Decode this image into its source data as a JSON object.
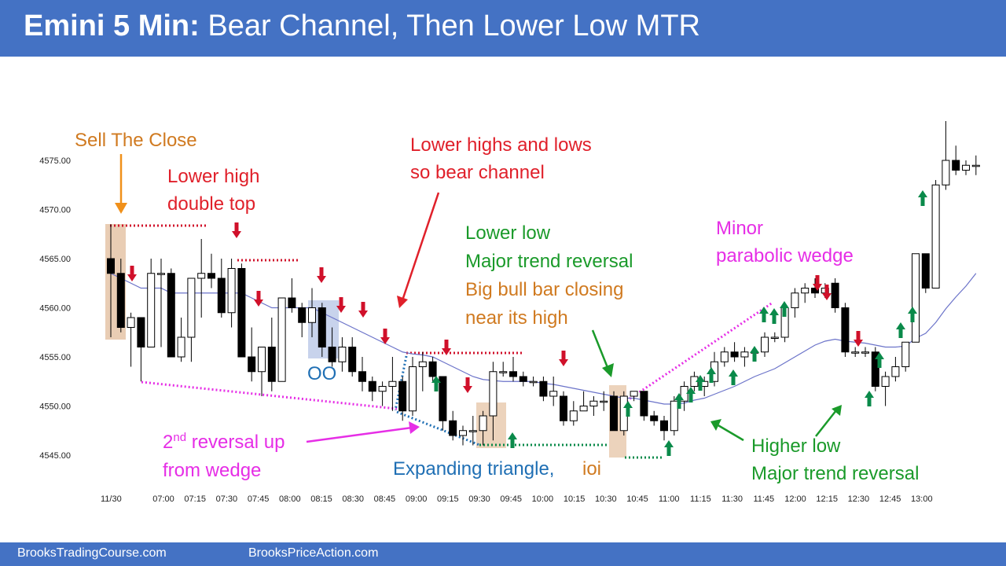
{
  "header": {
    "title_bold": "Emini 5 Min:",
    "title_rest": "Bear Channel, Then Lower Low MTR"
  },
  "footer": {
    "left": "BrooksTradingCourse.com",
    "right": "BrooksPriceAction.com"
  },
  "colors": {
    "header_bg": "#4472c4",
    "bull": "#ffffff",
    "bear": "#000000",
    "ema": "#6b73c9",
    "up_arrow": "#0a8a4a",
    "down_arrow": "#d0102a",
    "magenta": "#e62ee6",
    "red_label": "#e0202a",
    "green_label": "#1a9a2a",
    "orange_label": "#d07a20",
    "blue_label": "#1f6fb4"
  },
  "chart_data": {
    "type": "candlestick",
    "y_ticks": [
      "4575.00",
      "4570.00",
      "4565.00",
      "4560.00",
      "4555.00",
      "4550.00",
      "4545.00"
    ],
    "ylim": [
      4543.5,
      4580
    ],
    "x_ticks": [
      "11/30",
      "07:00",
      "07:15",
      "07:30",
      "07:45",
      "08:00",
      "08:15",
      "08:30",
      "08:45",
      "09:00",
      "09:15",
      "09:30",
      "09:45",
      "10:00",
      "10:15",
      "10:30",
      "10:45",
      "11:00",
      "11:15",
      "11:30",
      "11:45",
      "12:00",
      "12:15",
      "12:30",
      "12:45",
      "13:00"
    ],
    "candles": [
      {
        "o": 4565.0,
        "h": 4568.5,
        "l": 4557.0,
        "c": 4563.5
      },
      {
        "o": 4563.5,
        "h": 4565.0,
        "l": 4557.5,
        "c": 4558.0
      },
      {
        "o": 4558.0,
        "h": 4559.5,
        "l": 4554.0,
        "c": 4559.0
      },
      {
        "o": 4559.0,
        "h": 4559.0,
        "l": 4552.5,
        "c": 4556.0
      },
      {
        "o": 4556.0,
        "h": 4565.0,
        "l": 4556.0,
        "c": 4563.5
      },
      {
        "o": 4563.5,
        "h": 4565.0,
        "l": 4556.0,
        "c": 4563.5
      },
      {
        "o": 4563.5,
        "h": 4564.0,
        "l": 4555.0,
        "c": 4555.0
      },
      {
        "o": 4555.0,
        "h": 4559.0,
        "l": 4554.5,
        "c": 4557.0
      },
      {
        "o": 4557.0,
        "h": 4563.0,
        "l": 4554.5,
        "c": 4563.0
      },
      {
        "o": 4563.0,
        "h": 4567.0,
        "l": 4559.0,
        "c": 4563.5
      },
      {
        "o": 4563.5,
        "h": 4565.5,
        "l": 4562.0,
        "c": 4563.0
      },
      {
        "o": 4563.0,
        "h": 4565.0,
        "l": 4559.0,
        "c": 4559.5
      },
      {
        "o": 4559.5,
        "h": 4565.0,
        "l": 4558.0,
        "c": 4564.0
      },
      {
        "o": 4564.0,
        "h": 4564.5,
        "l": 4555.0,
        "c": 4555.0
      },
      {
        "o": 4555.0,
        "h": 4558.0,
        "l": 4552.5,
        "c": 4553.5
      },
      {
        "o": 4553.5,
        "h": 4556.0,
        "l": 4551.0,
        "c": 4556.0
      },
      {
        "o": 4556.0,
        "h": 4559.0,
        "l": 4551.5,
        "c": 4552.5
      },
      {
        "o": 4552.5,
        "h": 4561.0,
        "l": 4552.5,
        "c": 4561.0
      },
      {
        "o": 4561.0,
        "h": 4563.0,
        "l": 4559.5,
        "c": 4560.0
      },
      {
        "o": 4560.0,
        "h": 4560.5,
        "l": 4557.0,
        "c": 4558.5
      },
      {
        "o": 4558.5,
        "h": 4562.0,
        "l": 4557.0,
        "c": 4560.0
      },
      {
        "o": 4560.0,
        "h": 4560.5,
        "l": 4555.0,
        "c": 4556.0
      },
      {
        "o": 4556.0,
        "h": 4558.0,
        "l": 4554.0,
        "c": 4554.5
      },
      {
        "o": 4554.5,
        "h": 4557.0,
        "l": 4553.5,
        "c": 4556.0
      },
      {
        "o": 4556.0,
        "h": 4557.0,
        "l": 4553.0,
        "c": 4553.5
      },
      {
        "o": 4553.5,
        "h": 4555.0,
        "l": 4551.5,
        "c": 4552.5
      },
      {
        "o": 4552.5,
        "h": 4553.0,
        "l": 4550.5,
        "c": 4551.5
      },
      {
        "o": 4551.5,
        "h": 4552.5,
        "l": 4550.0,
        "c": 4552.0
      },
      {
        "o": 4552.0,
        "h": 4555.0,
        "l": 4549.5,
        "c": 4552.5
      },
      {
        "o": 4552.5,
        "h": 4553.0,
        "l": 4548.5,
        "c": 4549.5
      },
      {
        "o": 4549.5,
        "h": 4555.0,
        "l": 4549.0,
        "c": 4554.0
      },
      {
        "o": 4554.0,
        "h": 4555.5,
        "l": 4551.5,
        "c": 4554.5
      },
      {
        "o": 4554.5,
        "h": 4555.0,
        "l": 4552.5,
        "c": 4553.0
      },
      {
        "o": 4553.0,
        "h": 4553.0,
        "l": 4547.5,
        "c": 4548.5
      },
      {
        "o": 4548.5,
        "h": 4549.5,
        "l": 4546.5,
        "c": 4547.0
      },
      {
        "o": 4547.0,
        "h": 4548.0,
        "l": 4546.0,
        "c": 4547.5
      },
      {
        "o": 4547.5,
        "h": 4549.0,
        "l": 4546.0,
        "c": 4547.5
      },
      {
        "o": 4547.5,
        "h": 4549.5,
        "l": 4546.0,
        "c": 4549.0
      },
      {
        "o": 4549.0,
        "h": 4554.5,
        "l": 4546.5,
        "c": 4553.5
      },
      {
        "o": 4553.5,
        "h": 4554.5,
        "l": 4553.0,
        "c": 4553.5
      },
      {
        "o": 4553.5,
        "h": 4555.0,
        "l": 4552.5,
        "c": 4553.0
      },
      {
        "o": 4553.0,
        "h": 4553.5,
        "l": 4552.0,
        "c": 4552.5
      },
      {
        "o": 4552.5,
        "h": 4553.0,
        "l": 4552.0,
        "c": 4552.5
      },
      {
        "o": 4552.5,
        "h": 4553.0,
        "l": 4550.5,
        "c": 4551.0
      },
      {
        "o": 4551.0,
        "h": 4553.0,
        "l": 4550.0,
        "c": 4551.5
      },
      {
        "o": 4551.0,
        "h": 4551.5,
        "l": 4548.0,
        "c": 4548.5
      },
      {
        "o": 4548.5,
        "h": 4550.5,
        "l": 4548.0,
        "c": 4549.5
      },
      {
        "o": 4549.5,
        "h": 4551.5,
        "l": 4549.5,
        "c": 4550.0
      },
      {
        "o": 4550.0,
        "h": 4551.0,
        "l": 4549.0,
        "c": 4550.5
      },
      {
        "o": 4550.5,
        "h": 4551.5,
        "l": 4549.5,
        "c": 4550.5
      },
      {
        "o": 4551.0,
        "h": 4551.5,
        "l": 4547.5,
        "c": 4547.5
      },
      {
        "o": 4547.5,
        "h": 4551.5,
        "l": 4547.0,
        "c": 4551.0
      },
      {
        "o": 4551.0,
        "h": 4551.5,
        "l": 4550.5,
        "c": 4551.5
      },
      {
        "o": 4551.5,
        "h": 4551.5,
        "l": 4548.5,
        "c": 4549.0
      },
      {
        "o": 4549.0,
        "h": 4549.5,
        "l": 4548.0,
        "c": 4548.5
      },
      {
        "o": 4548.5,
        "h": 4549.0,
        "l": 4546.5,
        "c": 4547.5
      },
      {
        "o": 4547.5,
        "h": 4551.0,
        "l": 4547.0,
        "c": 4550.5
      },
      {
        "o": 4550.5,
        "h": 4552.5,
        "l": 4549.5,
        "c": 4552.0
      },
      {
        "o": 4552.0,
        "h": 4553.5,
        "l": 4551.5,
        "c": 4553.0
      },
      {
        "o": 4552.0,
        "h": 4553.0,
        "l": 4551.0,
        "c": 4552.5
      },
      {
        "o": 4552.5,
        "h": 4555.5,
        "l": 4552.0,
        "c": 4554.5
      },
      {
        "o": 4554.5,
        "h": 4556.0,
        "l": 4554.0,
        "c": 4555.5
      },
      {
        "o": 4555.5,
        "h": 4556.5,
        "l": 4554.5,
        "c": 4555.0
      },
      {
        "o": 4555.0,
        "h": 4556.0,
        "l": 4554.0,
        "c": 4555.5
      },
      {
        "o": 4555.5,
        "h": 4556.0,
        "l": 4555.0,
        "c": 4555.5
      },
      {
        "o": 4555.5,
        "h": 4557.5,
        "l": 4555.0,
        "c": 4557.0
      },
      {
        "o": 4557.0,
        "h": 4557.5,
        "l": 4556.5,
        "c": 4557.0
      },
      {
        "o": 4557.0,
        "h": 4560.0,
        "l": 4556.5,
        "c": 4560.0
      },
      {
        "o": 4560.0,
        "h": 4562.0,
        "l": 4559.0,
        "c": 4561.5
      },
      {
        "o": 4561.5,
        "h": 4562.5,
        "l": 4560.5,
        "c": 4562.0
      },
      {
        "o": 4562.0,
        "h": 4563.0,
        "l": 4561.0,
        "c": 4561.5
      },
      {
        "o": 4561.5,
        "h": 4562.5,
        "l": 4561.0,
        "c": 4562.0
      },
      {
        "o": 4562.5,
        "h": 4563.0,
        "l": 4559.5,
        "c": 4560.0
      },
      {
        "o": 4560.0,
        "h": 4560.5,
        "l": 4555.0,
        "c": 4555.5
      },
      {
        "o": 4555.5,
        "h": 4556.0,
        "l": 4555.0,
        "c": 4555.5
      },
      {
        "o": 4555.5,
        "h": 4556.0,
        "l": 4555.0,
        "c": 4555.5
      },
      {
        "o": 4555.5,
        "h": 4556.0,
        "l": 4551.5,
        "c": 4552.0
      },
      {
        "o": 4552.0,
        "h": 4553.5,
        "l": 4550.0,
        "c": 4553.0
      },
      {
        "o": 4553.0,
        "h": 4555.0,
        "l": 4552.5,
        "c": 4554.0
      },
      {
        "o": 4554.0,
        "h": 4556.5,
        "l": 4553.5,
        "c": 4556.5
      },
      {
        "o": 4556.5,
        "h": 4565.5,
        "l": 4556.5,
        "c": 4565.5
      },
      {
        "o": 4565.5,
        "h": 4565.5,
        "l": 4561.5,
        "c": 4562.0
      },
      {
        "o": 4562.0,
        "h": 4573.0,
        "l": 4562.0,
        "c": 4572.5
      },
      {
        "o": 4572.5,
        "h": 4579.0,
        "l": 4572.0,
        "c": 4575.0
      },
      {
        "o": 4575.0,
        "h": 4576.5,
        "l": 4573.5,
        "c": 4574.0
      },
      {
        "o": 4574.0,
        "h": 4575.0,
        "l": 4573.5,
        "c": 4574.5
      },
      {
        "o": 4574.5,
        "h": 4575.5,
        "l": 4573.5,
        "c": 4574.5
      }
    ],
    "ema": [
      4563.5,
      4563.0,
      4562.5,
      4562.0,
      4562.0,
      4562.0,
      4561.5,
      4561.5,
      4561.5,
      4561.5,
      4561.5,
      4561.5,
      4561.5,
      4561.5,
      4561.0,
      4560.5,
      4560.0,
      4560.0,
      4560.0,
      4560.0,
      4560.0,
      4559.5,
      4559.0,
      4558.5,
      4558.0,
      4557.5,
      4557.0,
      4556.5,
      4556.0,
      4555.5,
      4555.3,
      4555.2,
      4555.0,
      4554.5,
      4554.0,
      4553.5,
      4553.0,
      4552.7,
      4552.6,
      4552.5,
      4552.5,
      4552.5,
      4552.5,
      4552.3,
      4552.2,
      4552.0,
      4551.8,
      4551.6,
      4551.4,
      4551.2,
      4551.0,
      4550.8,
      4550.8,
      4550.6,
      4550.4,
      4550.2,
      4550.2,
      4550.3,
      4550.6,
      4550.8,
      4551.2,
      4551.6,
      4552.0,
      4552.5,
      4553.0,
      4553.4,
      4553.8,
      4554.4,
      4555.0,
      4555.6,
      4556.2,
      4556.6,
      4556.8,
      4556.6,
      4556.5,
      4556.4,
      4556.2,
      4556.0,
      4556.0,
      4556.1,
      4556.9,
      4557.4,
      4558.5,
      4559.9,
      4561.1,
      4562.2,
      4563.5
    ]
  },
  "annotations": {
    "sell_the_close": "Sell The Close",
    "lower_high_1": "Lower high",
    "lower_high_2": "double top",
    "bear_channel_1": "Lower highs and lows",
    "bear_channel_2": "so bear channel",
    "oo": "OO",
    "lower_low_1": "Lower low",
    "lower_low_2": "Major trend reversal",
    "big_bull_1": "Big bull bar closing",
    "big_bull_2": "near its high",
    "minor_1": "Minor",
    "minor_2": "parabolic wedge",
    "reversal_up_pre": "2",
    "reversal_up_sup": "nd",
    "reversal_up_post": " reversal up",
    "from_wedge": "from wedge",
    "expanding_triangle": "Expanding triangle,",
    "ioi": "ioi",
    "higher_low_1": "Higher low",
    "higher_low_2": "Major trend reversal"
  }
}
